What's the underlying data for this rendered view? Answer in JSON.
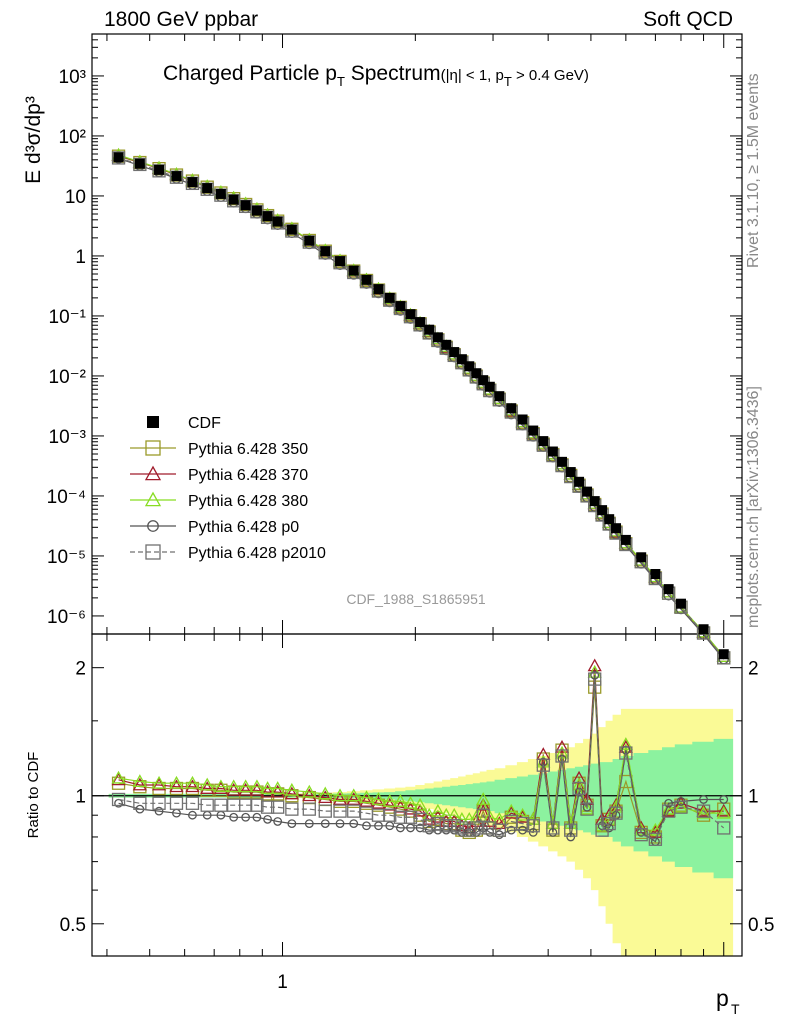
{
  "header": {
    "left": "1800 GeV ppbar",
    "right": "Soft QCD"
  },
  "plot_title": {
    "main": "Charged Particle p",
    "main_sub": "T",
    "main_tail": " Spectrum",
    "cuts_a": "(|η| < 1, p",
    "cuts_sub": "T",
    "cuts_b": " > 0.4 GeV)"
  },
  "side_labels": {
    "rivet": "Rivet 3.1.10, ≥ 1.5M events",
    "mcplots": "mcplots.cern.ch [arXiv:1306.3436]"
  },
  "analysis_id": "CDF_1988_S1865951",
  "colors": {
    "cdf": "#000000",
    "pythia_350": "#9a9a2a",
    "pythia_370": "#a01c2c",
    "pythia_380": "#88dd22",
    "pythia_p0": "#555555",
    "pythia_p2010": "#707070",
    "band_inner": "#8cf29f",
    "band_outer": "#fafa96"
  },
  "chart_data": [
    {
      "type": "line",
      "xlabel": "p_T",
      "ylabel": "E d³σ/dp³",
      "yscale": "log",
      "xscale": "log",
      "ylim": [
        5e-07,
        5000
      ],
      "xlim": [
        0.37,
        11
      ],
      "y_ticks": [
        "10⁻⁶",
        "10⁻⁵",
        "10⁻⁴",
        "10⁻³",
        "10⁻²",
        "10⁻¹",
        "1",
        "10",
        "10²",
        "10³"
      ],
      "x": [
        0.425,
        0.475,
        0.525,
        0.575,
        0.625,
        0.675,
        0.725,
        0.775,
        0.825,
        0.875,
        0.925,
        0.975,
        1.05,
        1.15,
        1.25,
        1.35,
        1.45,
        1.55,
        1.65,
        1.75,
        1.85,
        1.95,
        2.05,
        2.15,
        2.25,
        2.35,
        2.45,
        2.55,
        2.65,
        2.75,
        2.85,
        2.95,
        3.1,
        3.3,
        3.5,
        3.7,
        3.9,
        4.1,
        4.3,
        4.5,
        4.7,
        4.9,
        5.1,
        5.3,
        5.5,
        5.7,
        6.0,
        6.5,
        7.0,
        7.5,
        8.0,
        9.0,
        10.0
      ],
      "series": [
        {
          "name": "CDF",
          "marker": "filled-square",
          "values": [
            44,
            34.5,
            27.2,
            21.4,
            17.0,
            13.5,
            10.8,
            8.7,
            7.0,
            5.7,
            4.6,
            3.75,
            2.75,
            1.8,
            1.2,
            0.82,
            0.57,
            0.4,
            0.28,
            0.2,
            0.146,
            0.107,
            0.079,
            0.059,
            0.044,
            0.033,
            0.025,
            0.019,
            0.0145,
            0.0111,
            0.0085,
            0.0066,
            0.0046,
            0.0029,
            0.00188,
            0.00123,
            0.00082,
            0.00055,
            0.00037,
            0.00025,
            0.000172,
            0.000118,
            8.2e-05,
            5.8e-05,
            4.1e-05,
            2.9e-05,
            1.85e-05,
            9.5e-06,
            5e-06,
            2.8e-06,
            1.6e-06,
            6e-07,
            2.3e-07
          ]
        },
        {
          "name": "Pythia 6.428 350",
          "marker": "open-square",
          "values": [
            46,
            36,
            28.5,
            22.3,
            17.7,
            14.0,
            11.2,
            9.0,
            7.2,
            5.85,
            4.7,
            3.8,
            2.78,
            1.81,
            1.2,
            0.81,
            0.56,
            0.39,
            0.27,
            0.19,
            0.139,
            0.101,
            0.074,
            0.054,
            0.04,
            0.03,
            0.0226,
            0.0171,
            0.013,
            0.0099,
            0.0076,
            0.0058,
            0.0041,
            0.0026,
            0.00167,
            0.00109,
            0.00073,
            0.00049,
            0.00033,
            0.00022,
            0.000151,
            0.000104,
            7.2e-05,
            5e-05,
            3.5e-05,
            2.5e-05,
            1.6e-05,
            8.2e-06,
            4.3e-06,
            2.4e-06,
            1.4e-06,
            5.2e-07,
            2e-07
          ]
        },
        {
          "name": "Pythia 6.428 370",
          "marker": "open-triangle",
          "values": [
            47,
            36.5,
            28.8,
            22.6,
            17.9,
            14.2,
            11.3,
            9.1,
            7.3,
            5.9,
            4.75,
            3.85,
            2.8,
            1.83,
            1.21,
            0.82,
            0.565,
            0.395,
            0.275,
            0.193,
            0.14,
            0.102,
            0.075,
            0.055,
            0.041,
            0.03,
            0.0229,
            0.0173,
            0.0132,
            0.0101,
            0.0077,
            0.0059,
            0.0042,
            0.0026,
            0.0017,
            0.0011,
            0.00074,
            0.0005,
            0.00034,
            0.00023,
            0.000155,
            0.000107,
            7.4e-05,
            5.1e-05,
            3.6e-05,
            2.5e-05,
            1.63e-05,
            8.4e-06,
            4.4e-06,
            2.5e-06,
            1.4e-06,
            5.3e-07,
            2.1e-07
          ]
        },
        {
          "name": "Pythia 6.428 380",
          "marker": "open-triangle",
          "values": [
            48,
            37,
            29.2,
            22.9,
            18.1,
            14.4,
            11.5,
            9.2,
            7.4,
            6.0,
            4.8,
            3.9,
            2.84,
            1.85,
            1.23,
            0.83,
            0.57,
            0.4,
            0.28,
            0.196,
            0.142,
            0.104,
            0.076,
            0.056,
            0.0415,
            0.031,
            0.0232,
            0.0175,
            0.0134,
            0.0102,
            0.0078,
            0.006,
            0.0042,
            0.0027,
            0.00172,
            0.00112,
            0.00075,
            0.0005,
            0.00034,
            0.00023,
            0.000157,
            0.000108,
            7.5e-05,
            5.2e-05,
            3.6e-05,
            2.6e-05,
            1.65e-05,
            8.5e-06,
            4.5e-06,
            2.5e-06,
            1.4e-06,
            5.4e-07,
            2.1e-07
          ]
        },
        {
          "name": "Pythia 6.428 p0",
          "marker": "open-circle",
          "values": [
            42,
            32,
            25.0,
            19.5,
            15.4,
            12.2,
            9.7,
            7.8,
            6.3,
            5.1,
            4.1,
            3.3,
            2.42,
            1.58,
            1.05,
            0.71,
            0.49,
            0.345,
            0.24,
            0.17,
            0.123,
            0.09,
            0.066,
            0.049,
            0.036,
            0.027,
            0.0205,
            0.0155,
            0.0118,
            0.009,
            0.0069,
            0.0053,
            0.0037,
            0.0023,
            0.0015,
            0.00098,
            0.00066,
            0.00044,
            0.0003,
            0.0002,
            0.000138,
            9.5e-05,
            6.6e-05,
            4.6e-05,
            3.2e-05,
            2.3e-05,
            1.47e-05,
            7.5e-06,
            4e-06,
            2.2e-06,
            1.3e-06,
            4.9e-07,
            1.9e-07
          ]
        },
        {
          "name": "Pythia 6.428 p2010",
          "marker": "open-square",
          "dashed": true,
          "values": [
            43,
            33.5,
            26.2,
            20.5,
            16.2,
            12.9,
            10.3,
            8.3,
            6.7,
            5.45,
            4.4,
            3.55,
            2.6,
            1.7,
            1.13,
            0.77,
            0.53,
            0.372,
            0.26,
            0.183,
            0.133,
            0.097,
            0.071,
            0.052,
            0.039,
            0.029,
            0.022,
            0.0166,
            0.0126,
            0.0096,
            0.0074,
            0.0057,
            0.004,
            0.0025,
            0.0016,
            0.00105,
            0.0007,
            0.00047,
            0.00032,
            0.00021,
            0.000145,
            0.0001,
            6.9e-05,
            4.8e-05,
            3.4e-05,
            2.4e-05,
            1.55e-05,
            8e-06,
            4.2e-06,
            2.4e-06,
            1.4e-06,
            5.2e-07,
            2e-07
          ]
        }
      ]
    },
    {
      "type": "line",
      "ylabel": "Ratio to CDF",
      "xlabel": "p_T",
      "yscale": "log",
      "ylim": [
        0.42,
        2.4
      ],
      "y_ticks": [
        "0.5",
        "1",
        "2"
      ],
      "x_ticks": [
        "1"
      ],
      "x": [
        0.425,
        0.475,
        0.525,
        0.575,
        0.625,
        0.675,
        0.725,
        0.775,
        0.825,
        0.875,
        0.925,
        0.975,
        1.05,
        1.15,
        1.25,
        1.35,
        1.45,
        1.55,
        1.65,
        1.75,
        1.85,
        1.95,
        2.05,
        2.15,
        2.25,
        2.35,
        2.45,
        2.55,
        2.65,
        2.75,
        2.85,
        2.95,
        3.1,
        3.3,
        3.5,
        3.7,
        3.9,
        4.1,
        4.3,
        4.5,
        4.7,
        4.9,
        5.1,
        5.3,
        5.5,
        5.7,
        6.0,
        6.5,
        7.0,
        7.5,
        8.0,
        9.0,
        10.0
      ],
      "band_inner_halfwidth": [
        0.01,
        0.01,
        0.01,
        0.01,
        0.01,
        0.01,
        0.01,
        0.01,
        0.01,
        0.01,
        0.01,
        0.01,
        0.01,
        0.01,
        0.01,
        0.012,
        0.014,
        0.016,
        0.018,
        0.02,
        0.025,
        0.03,
        0.035,
        0.04,
        0.045,
        0.05,
        0.055,
        0.06,
        0.065,
        0.07,
        0.075,
        0.08,
        0.09,
        0.1,
        0.11,
        0.12,
        0.13,
        0.14,
        0.15,
        0.16,
        0.17,
        0.18,
        0.19,
        0.2,
        0.2,
        0.22,
        0.24,
        0.26,
        0.28,
        0.3,
        0.32,
        0.34,
        0.36
      ],
      "band_outer_halfwidth": [
        0.01,
        0.01,
        0.01,
        0.01,
        0.01,
        0.01,
        0.01,
        0.01,
        0.01,
        0.01,
        0.01,
        0.01,
        0.012,
        0.014,
        0.016,
        0.02,
        0.025,
        0.03,
        0.035,
        0.04,
        0.045,
        0.05,
        0.06,
        0.07,
        0.08,
        0.09,
        0.1,
        0.11,
        0.12,
        0.13,
        0.14,
        0.15,
        0.16,
        0.18,
        0.2,
        0.22,
        0.24,
        0.26,
        0.28,
        0.3,
        0.33,
        0.36,
        0.4,
        0.45,
        0.5,
        0.55,
        0.6,
        0.6,
        0.6,
        0.6,
        0.6,
        0.6,
        0.6
      ],
      "series": [
        {
          "name": "Pythia 6.428 350",
          "values": [
            1.07,
            1.05,
            1.04,
            1.04,
            1.04,
            1.03,
            1.03,
            1.02,
            1.02,
            1.02,
            1.01,
            1.01,
            1.0,
            0.99,
            0.98,
            0.97,
            0.97,
            0.96,
            0.95,
            0.94,
            0.93,
            0.92,
            0.9,
            0.87,
            0.88,
            0.86,
            0.86,
            0.83,
            0.82,
            0.83,
            0.92,
            0.84,
            0.83,
            0.89,
            0.87,
            0.86,
            1.22,
            0.83,
            1.28,
            0.84,
            1.07,
            0.95,
            1.8,
            0.85,
            0.88,
            0.92,
            1.08,
            0.82,
            0.8,
            0.93,
            0.95,
            0.9,
            0.93
          ]
        },
        {
          "name": "Pythia 6.428 370",
          "values": [
            1.09,
            1.06,
            1.06,
            1.05,
            1.05,
            1.04,
            1.04,
            1.03,
            1.03,
            1.03,
            1.02,
            1.02,
            1.01,
            1.0,
            0.99,
            0.98,
            0.98,
            0.97,
            0.96,
            0.95,
            0.94,
            0.93,
            0.92,
            0.88,
            0.89,
            0.87,
            0.87,
            0.85,
            0.84,
            0.87,
            0.95,
            0.87,
            0.86,
            0.91,
            0.89,
            0.88,
            1.25,
            0.86,
            1.3,
            0.86,
            1.1,
            0.98,
            2.02,
            0.88,
            0.9,
            0.95,
            1.3,
            0.84,
            0.82,
            0.92,
            0.96,
            0.92,
            0.92
          ]
        },
        {
          "name": "Pythia 6.428 380",
          "values": [
            1.1,
            1.08,
            1.07,
            1.07,
            1.07,
            1.06,
            1.05,
            1.05,
            1.05,
            1.05,
            1.04,
            1.04,
            1.03,
            1.02,
            1.01,
            1.0,
            1.0,
            0.99,
            0.98,
            0.97,
            0.97,
            0.96,
            0.95,
            0.9,
            0.92,
            0.9,
            0.9,
            0.88,
            0.88,
            0.89,
            0.98,
            0.89,
            0.88,
            0.92,
            0.9,
            0.88,
            1.2,
            0.86,
            1.26,
            0.86,
            1.06,
            0.93,
            1.95,
            0.85,
            0.88,
            0.94,
            1.32,
            0.83,
            0.83,
            0.93,
            0.94,
            0.91,
            0.91
          ]
        },
        {
          "name": "Pythia 6.428 p0",
          "values": [
            0.96,
            0.93,
            0.92,
            0.91,
            0.9,
            0.9,
            0.9,
            0.89,
            0.89,
            0.89,
            0.88,
            0.87,
            0.86,
            0.86,
            0.86,
            0.86,
            0.86,
            0.85,
            0.85,
            0.85,
            0.84,
            0.84,
            0.84,
            0.83,
            0.83,
            0.83,
            0.83,
            0.82,
            0.82,
            0.82,
            0.84,
            0.82,
            0.81,
            0.83,
            0.83,
            0.82,
            1.2,
            0.82,
            1.22,
            0.8,
            1.02,
            0.94,
            1.92,
            0.85,
            0.84,
            0.9,
            1.28,
            0.82,
            0.78,
            0.96,
            0.97,
            0.98,
            0.98
          ]
        },
        {
          "name": "Pythia 6.428 p2010",
          "values": [
            0.98,
            0.96,
            0.96,
            0.96,
            0.96,
            0.95,
            0.95,
            0.95,
            0.95,
            0.95,
            0.94,
            0.94,
            0.93,
            0.93,
            0.92,
            0.92,
            0.92,
            0.91,
            0.9,
            0.9,
            0.89,
            0.89,
            0.88,
            0.85,
            0.86,
            0.85,
            0.85,
            0.84,
            0.83,
            0.84,
            0.9,
            0.84,
            0.83,
            0.87,
            0.86,
            0.85,
            1.18,
            0.84,
            1.24,
            0.83,
            1.04,
            0.93,
            1.88,
            0.83,
            0.86,
            0.91,
            1.26,
            0.81,
            0.79,
            0.92,
            0.94,
            0.92,
            0.84
          ]
        }
      ]
    }
  ],
  "legend": [
    {
      "label": "CDF"
    },
    {
      "label": "Pythia 6.428 350"
    },
    {
      "label": "Pythia 6.428 370"
    },
    {
      "label": "Pythia 6.428 380"
    },
    {
      "label": "Pythia 6.428 p0"
    },
    {
      "label": "Pythia 6.428 p2010"
    }
  ]
}
